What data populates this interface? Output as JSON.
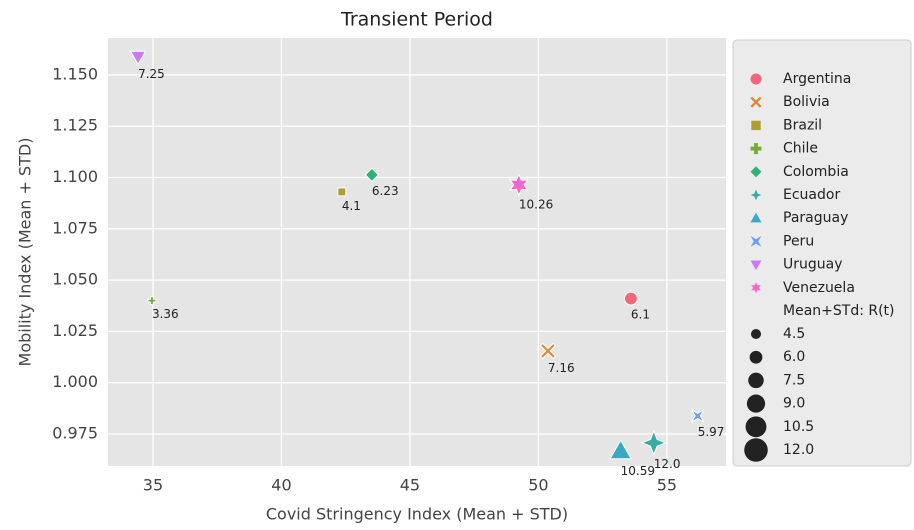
{
  "chart_data": {
    "type": "scatter",
    "title": "Transient Period",
    "x_label": "Covid Stringency Index (Mean + STD)",
    "y_label": "Mobility Index (Mean + STD)",
    "xlim": [
      33.25,
      57.3
    ],
    "ylim": [
      0.9594,
      1.168
    ],
    "xticks": [
      35,
      40,
      45,
      50,
      55
    ],
    "yticks": [
      {
        "value": 0.975,
        "label": "0.975"
      },
      {
        "value": 1.0,
        "label": "1.000"
      },
      {
        "value": 1.025,
        "label": "1.025"
      },
      {
        "value": 1.05,
        "label": "1.050"
      },
      {
        "value": 1.075,
        "label": "1.075"
      },
      {
        "value": 1.1,
        "label": "1.100"
      },
      {
        "value": 1.125,
        "label": "1.125"
      },
      {
        "value": 1.15,
        "label": "1.150"
      }
    ],
    "grid": true,
    "legend": "right outside",
    "series": [
      {
        "name": "Argentina",
        "color": "#f2677c",
        "marker": "circle",
        "x": [
          53.6
        ],
        "values": [
          1.041
        ],
        "sizes": [
          6.1
        ],
        "value_labels": [
          "6.1"
        ]
      },
      {
        "name": "Bolivia",
        "color": "#dc8932",
        "marker": "x",
        "x": [
          50.37
        ],
        "values": [
          1.0155
        ],
        "sizes": [
          7.16
        ],
        "value_labels": [
          "7.16"
        ]
      },
      {
        "name": "Brazil",
        "color": "#ae9d31",
        "marker": "square",
        "x": [
          42.35
        ],
        "values": [
          1.093
        ],
        "sizes": [
          4.1
        ],
        "value_labels": [
          "4.1"
        ]
      },
      {
        "name": "Chile",
        "color": "#77ab31",
        "marker": "plus",
        "x": [
          34.96
        ],
        "values": [
          1.04
        ],
        "sizes": [
          3.36
        ],
        "value_labels": [
          "3.36"
        ]
      },
      {
        "name": "Colombia",
        "color": "#33b07a",
        "marker": "diamond",
        "x": [
          43.52
        ],
        "values": [
          1.1013
        ],
        "sizes": [
          6.23
        ],
        "value_labels": [
          "6.23"
        ]
      },
      {
        "name": "Ecuador",
        "color": "#36ada4",
        "marker": "star4",
        "x": [
          54.49
        ],
        "values": [
          0.9707
        ],
        "sizes": [
          12.0
        ],
        "value_labels": [
          "12.0"
        ]
      },
      {
        "name": "Paraguay",
        "color": "#38a9c5",
        "marker": "triangle-up",
        "x": [
          53.2
        ],
        "values": [
          0.9668
        ],
        "sizes": [
          10.59
        ],
        "value_labels": [
          "10.59"
        ]
      },
      {
        "name": "Peru",
        "color": "#6e9bf4",
        "marker": "bowtie",
        "x": [
          56.2
        ],
        "values": [
          0.9838
        ],
        "sizes": [
          5.97
        ],
        "value_labels": [
          "5.97"
        ]
      },
      {
        "name": "Uruguay",
        "color": "#cc7af4",
        "marker": "triangle-down",
        "x": [
          34.42
        ],
        "values": [
          1.1588
        ],
        "sizes": [
          7.25
        ],
        "value_labels": [
          "7.25"
        ]
      },
      {
        "name": "Venezuela",
        "color": "#f565cc",
        "marker": "star6",
        "x": [
          49.24
        ],
        "values": [
          1.0964
        ],
        "sizes": [
          10.26
        ],
        "value_labels": [
          "10.26"
        ]
      }
    ],
    "size_legend_title": "Mean+STd: R(t)",
    "size_legend": [
      {
        "value": 4.5,
        "label": "4.5"
      },
      {
        "value": 6.0,
        "label": "6.0"
      },
      {
        "value": 7.5,
        "label": "7.5"
      },
      {
        "value": 9.0,
        "label": "9.0"
      },
      {
        "value": 10.5,
        "label": "10.5"
      },
      {
        "value": 12.0,
        "label": "12.0"
      }
    ]
  }
}
